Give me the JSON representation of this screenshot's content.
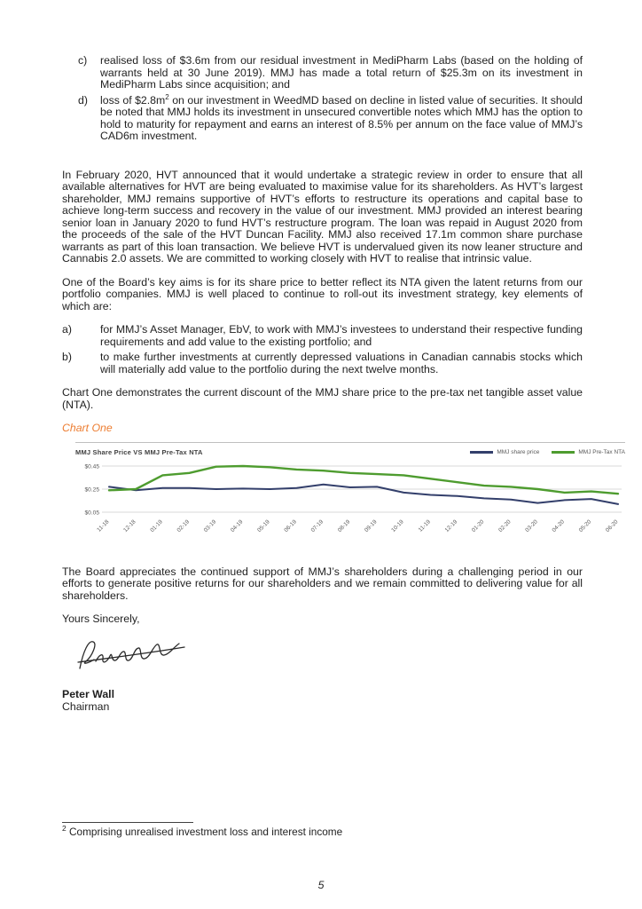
{
  "colors": {
    "caption_orange": "#ED7D31",
    "share_price_line": "#333F6B",
    "nta_line": "#4E9C2F",
    "chart_text_gray": "#595959"
  },
  "lists": {
    "top": [
      {
        "marker": "c)",
        "text": "realised loss of $3.6m from our residual investment in MediPharm Labs (based on the holding of warrants held at 30 June 2019).  MMJ has made a total return of $25.3m on its investment in MediPharm Labs since acquisition; and"
      },
      {
        "marker": "d)",
        "text_pre": "loss of $2.8m",
        "footnote_ref": "2",
        "text_post": " on our investment in WeedMD based on decline in listed value of securities.  It should be noted that MMJ holds its investment in unsecured convertible notes which MMJ has the option to hold to maturity for repayment and earns an interest of 8.5% per annum on the face value of MMJ’s CAD6m investment."
      }
    ],
    "strategy": [
      {
        "marker": "a)",
        "text": "for MMJ’s Asset Manager, EbV, to work with MMJ’s investees to understand their respective funding requirements and add value to the existing portfolio; and"
      },
      {
        "marker": "b)",
        "text": "to make further investments at currently depressed valuations in Canadian cannabis stocks which will materially add value to the portfolio during the next twelve months."
      }
    ]
  },
  "paragraphs": {
    "hvt_review": "In February 2020, HVT announced that it would undertake a strategic review in order to ensure that all available alternatives for HVT are being evaluated to maximise value for its shareholders. As HVT’s largest shareholder, MMJ remains supportive of HVT’s efforts to restructure its operations and capital base to achieve long-term success and recovery in the value of our investment. MMJ provided an interest bearing senior loan in January 2020 to fund HVT’s restructure program. The loan was repaid in August 2020 from the proceeds of the sale of the HVT Duncan Facility.  MMJ also received 17.1m common share purchase warrants as part of this loan transaction.  We believe HVT is undervalued given its now leaner structure and Cannabis 2.0 assets. We are committed to working closely with HVT to realise that intrinsic value.",
    "board_aims": "One of the Board’s key aims is for its share price to better reflect its NTA given the latent returns from our portfolio companies. MMJ is well placed to continue to roll-out its investment strategy, key elements of which are:",
    "chart_intro": "Chart One demonstrates the current discount of the MMJ share price to the pre-tax net tangible asset value (NTA).",
    "board_thanks": "The Board appreciates the continued support of MMJ’s shareholders during a challenging period in our efforts to generate positive returns for our shareholders and we remain committed to delivering value for all shareholders."
  },
  "chart_caption": "Chart One",
  "chart_data": {
    "type": "line",
    "title": "MMJ Share Price VS MMJ  Pre-Tax NTA",
    "x": [
      "11-18",
      "12-18",
      "01-19",
      "02-19",
      "03-19",
      "04-19",
      "05-19",
      "06-19",
      "07-19",
      "08-19",
      "09-19",
      "10-19",
      "11-19",
      "12-19",
      "01-20",
      "02-20",
      "03-20",
      "04-20",
      "05-20",
      "06-20"
    ],
    "series": [
      {
        "name": "MMJ share price",
        "color": "#333F6B",
        "values": [
          0.27,
          0.24,
          0.26,
          0.26,
          0.25,
          0.255,
          0.25,
          0.26,
          0.29,
          0.265,
          0.27,
          0.22,
          0.2,
          0.19,
          0.17,
          0.16,
          0.13,
          0.155,
          0.165,
          0.12
        ]
      },
      {
        "name": "MMJ Pre-Tax NTA",
        "color": "#4E9C2F",
        "values": [
          0.24,
          0.25,
          0.37,
          0.39,
          0.445,
          0.45,
          0.44,
          0.42,
          0.41,
          0.39,
          0.38,
          0.37,
          0.34,
          0.31,
          0.28,
          0.27,
          0.25,
          0.22,
          0.23,
          0.21
        ]
      }
    ],
    "ylim": [
      0.05,
      0.45
    ],
    "yticks": [
      {
        "label": "$0.45",
        "value": 0.45
      },
      {
        "label": "$0.25",
        "value": 0.25
      },
      {
        "label": "$0.05",
        "value": 0.05
      }
    ],
    "grid": "horizontal",
    "legend_position": "top-right",
    "xlabel": "",
    "ylabel": ""
  },
  "signature": {
    "salutation": "Yours Sincerely,",
    "name": "Peter Wall",
    "role": "Chairman"
  },
  "footnote": {
    "marker": "2",
    "text": " Comprising unrealised investment loss and interest income"
  },
  "page_number": "5"
}
